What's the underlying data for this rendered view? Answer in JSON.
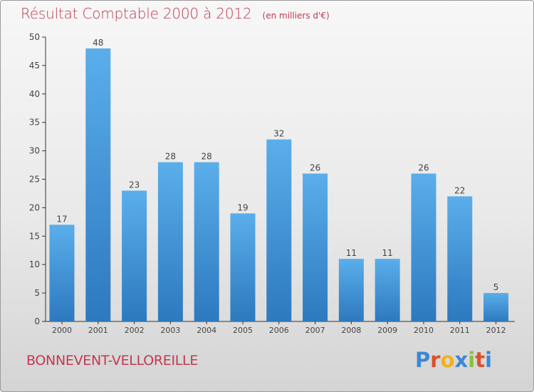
{
  "header": {
    "title": "Résultat Comptable 2000 à 2012",
    "subtitle": "(en milliers d'€)"
  },
  "footer": {
    "commune": "BONNEVENT-VELLOREILLE",
    "brand_letters": [
      "P",
      "r",
      "o",
      "x",
      "i",
      "t",
      "i"
    ],
    "brand_colors": [
      "#3d87d4",
      "#e0502a",
      "#f2b01f",
      "#3d87d4",
      "#8bbf3a",
      "#e0502a",
      "#3d87d4"
    ]
  },
  "chart_data": {
    "type": "bar",
    "title": "Résultat Comptable 2000 à 2012",
    "subtitle": "(en milliers d'€)",
    "xlabel": "",
    "ylabel": "",
    "categories": [
      "2000",
      "2001",
      "2002",
      "2003",
      "2004",
      "2005",
      "2006",
      "2007",
      "2008",
      "2009",
      "2010",
      "2011",
      "2012"
    ],
    "values": [
      17,
      48,
      23,
      28,
      28,
      19,
      32,
      26,
      11,
      11,
      26,
      22,
      5
    ],
    "ylim": [
      0,
      50
    ],
    "yticks": [
      0,
      5,
      10,
      15,
      20,
      25,
      30,
      35,
      40,
      45,
      50
    ],
    "grid": false,
    "legend": "none",
    "bar_color": "#3f96d8"
  }
}
